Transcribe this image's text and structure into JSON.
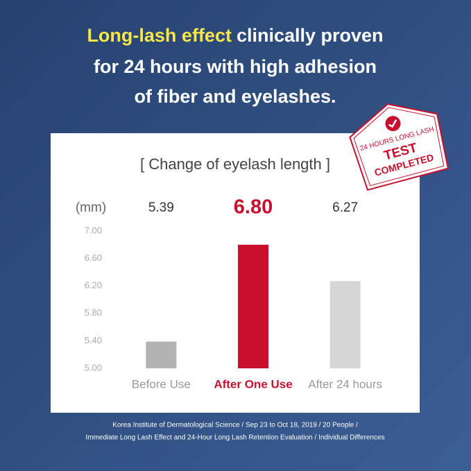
{
  "header": {
    "highlight": "Long-lash effect",
    "lines": [
      "clinically proven",
      "for 24 hours with high adhesion",
      "of fiber and eyelashes."
    ]
  },
  "badge": {
    "top": "24 HOURS LONG LASH",
    "middle": "TEST",
    "bottom": "COMPLETED"
  },
  "chart_data": {
    "type": "bar",
    "title": "[ Change of eyelash length ]",
    "y_unit": "(mm)",
    "categories": [
      "Before Use",
      "After One Use",
      "After 24 hours"
    ],
    "values": [
      5.39,
      6.8,
      6.27
    ],
    "value_labels": [
      "5.39",
      "6.80",
      "6.27"
    ],
    "colors": [
      "#b3b3b3",
      "#c8102e",
      "#d6d6d6"
    ],
    "highlight": 1,
    "ylim": [
      5.0,
      7.0
    ],
    "yticks": [
      {
        "value": 5.0,
        "label": "5.00"
      },
      {
        "value": 5.4,
        "label": "5.40"
      },
      {
        "value": 5.8,
        "label": "5.80"
      },
      {
        "value": 6.2,
        "label": "6.20"
      },
      {
        "value": 6.6,
        "label": "6.60"
      },
      {
        "value": 7.0,
        "label": "7.00"
      }
    ],
    "grid": false
  },
  "footnote": [
    "Korea Institute of Dermatological Science / Sep 23 to Oct 18, 2019 / 20 People /",
    "Immediate Long Lash Effect and 24-Hour Long Lash Retention Evaluation / Individual Differences"
  ]
}
